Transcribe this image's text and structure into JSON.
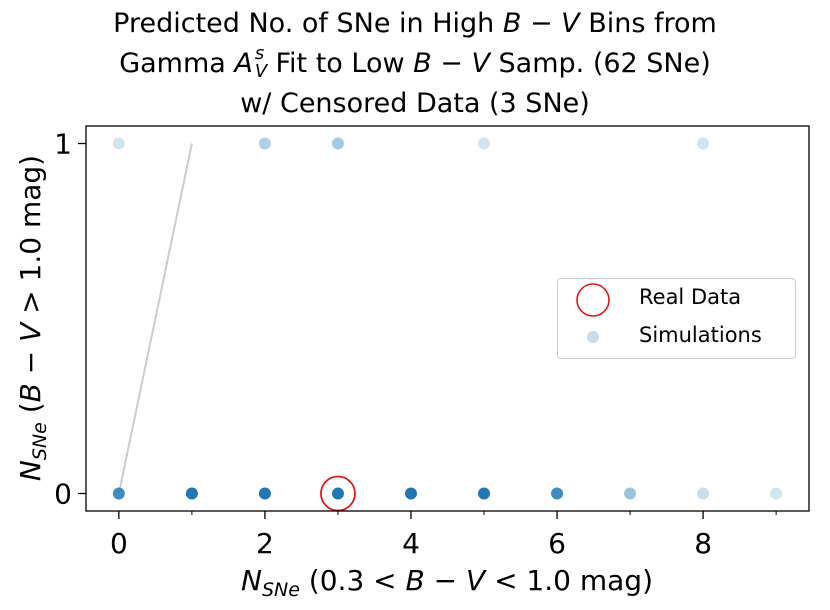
{
  "chart_data": {
    "type": "scatter",
    "title": [
      "Predicted No. of SNe in High B − V Bins from",
      "Gamma A_V^s Fit to Low B − V Samp. (62 SNe)",
      "w/ Censored Data (3 SNe)"
    ],
    "title_parts": {
      "line1_a": "Predicted No. of SNe in High ",
      "line1_math": "B − V",
      "line1_b": " Bins from",
      "line2_a": "Gamma ",
      "line2_math_base": "A",
      "line2_math_sup": "s",
      "line2_math_sub": "V",
      "line2_b": " Fit to Low ",
      "line2_math2": "B − V",
      "line2_c": " Samp. (62 SNe)",
      "line3": "w/ Censored Data (3 SNe)"
    },
    "xlabel": "N_SNe (0.3 < B − V < 1.0 mag)",
    "ylabel": "N_SNe (B − V > 1.0 mag)",
    "xlim": [
      -0.45,
      9.45
    ],
    "ylim": [
      -0.05,
      1.05
    ],
    "x_ticks": [
      0,
      2,
      4,
      6,
      8
    ],
    "x_minor_ticks": [
      1,
      3,
      5,
      7,
      9
    ],
    "y_ticks": [
      0,
      1
    ],
    "x_tick_labels": [
      "0",
      "2",
      "4",
      "6",
      "8"
    ],
    "y_tick_labels": [
      "0",
      "1"
    ],
    "series": [
      {
        "name": "Simulations",
        "color": "#1f77b4",
        "points": [
          {
            "x": 0,
            "y": 0,
            "alpha": 0.85
          },
          {
            "x": 1,
            "y": 0,
            "alpha": 1.0
          },
          {
            "x": 2,
            "y": 0,
            "alpha": 1.0
          },
          {
            "x": 3,
            "y": 0,
            "alpha": 1.0
          },
          {
            "x": 4,
            "y": 0,
            "alpha": 1.0
          },
          {
            "x": 5,
            "y": 0,
            "alpha": 1.0
          },
          {
            "x": 6,
            "y": 0,
            "alpha": 0.85
          },
          {
            "x": 7,
            "y": 0,
            "alpha": 0.45
          },
          {
            "x": 8,
            "y": 0,
            "alpha": 0.25
          },
          {
            "x": 9,
            "y": 0,
            "alpha": 0.2
          },
          {
            "x": 0,
            "y": 1,
            "alpha": 0.2
          },
          {
            "x": 2,
            "y": 1,
            "alpha": 0.35
          },
          {
            "x": 3,
            "y": 1,
            "alpha": 0.4
          },
          {
            "x": 5,
            "y": 1,
            "alpha": 0.2
          },
          {
            "x": 8,
            "y": 1,
            "alpha": 0.2
          }
        ]
      },
      {
        "name": "Real Data",
        "color": "#e8141a",
        "points": [
          {
            "x": 3,
            "y": 0
          }
        ]
      }
    ],
    "reference_line": {
      "x": [
        0,
        1
      ],
      "y": [
        0,
        1
      ],
      "color": "#cccccc"
    },
    "legend": {
      "position": "center-right",
      "entries": [
        "Real Data",
        "Simulations"
      ]
    }
  }
}
